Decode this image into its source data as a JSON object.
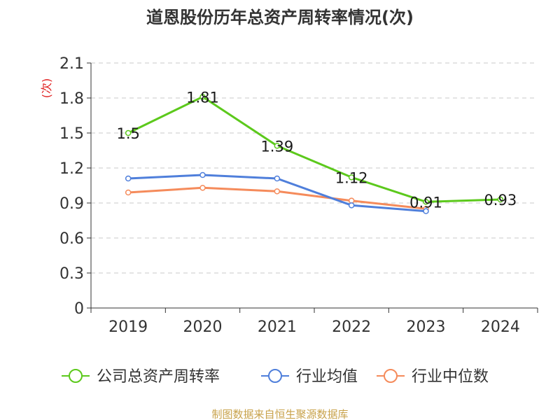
{
  "chart_data": {
    "type": "line",
    "title": "道恩股份历年总资产周转率情况(次)",
    "ylabel": "(次)",
    "xlabel": "",
    "categories": [
      "2019",
      "2020",
      "2021",
      "2022",
      "2023",
      "2024"
    ],
    "ylim": [
      0,
      2.1
    ],
    "yticks": [
      "0",
      "0.3",
      "0.6",
      "0.9",
      "1.2",
      "1.5",
      "1.8",
      "2.1"
    ],
    "grid": true,
    "legend_position": "bottom-center",
    "series": [
      {
        "name": "公司总资产周转率",
        "color": "#5cc91c",
        "values": [
          1.5,
          1.81,
          1.39,
          1.12,
          0.91,
          0.93
        ],
        "labels": [
          "1.5",
          "1.81",
          "1.39",
          "1.12",
          "0.91",
          "0.93"
        ]
      },
      {
        "name": "行业均值",
        "color": "#4f7fdb",
        "values": [
          1.11,
          1.14,
          1.11,
          0.88,
          0.83,
          null
        ]
      },
      {
        "name": "行业中位数",
        "color": "#f58b5b",
        "values": [
          0.99,
          1.03,
          1.0,
          0.92,
          0.85,
          null
        ]
      }
    ],
    "source": "制图数据来自恒生聚源数据库"
  },
  "colors": {
    "axis": "#333333",
    "grid": "#c8c8c8",
    "ylabel": "#e02020",
    "source": "#c8a24a"
  }
}
